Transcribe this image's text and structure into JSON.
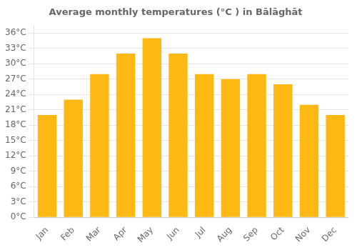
{
  "chart_data": {
    "type": "bar",
    "title": "Average monthly temperatures (°C ) in Bālāghāt",
    "categories": [
      "Jan",
      "Feb",
      "Mar",
      "Apr",
      "May",
      "Jun",
      "Jul",
      "Aug",
      "Sep",
      "Oct",
      "Nov",
      "Dec"
    ],
    "values": [
      20,
      23,
      28,
      32,
      35,
      32,
      28,
      27,
      28,
      26,
      22,
      20
    ],
    "color": "#FDB813",
    "ylim": [
      0,
      37.5
    ],
    "yticks": [
      {
        "value": 0,
        "label": "0°C"
      },
      {
        "value": 3,
        "label": "3°C"
      },
      {
        "value": 6,
        "label": "6°C"
      },
      {
        "value": 9,
        "label": "9°C"
      },
      {
        "value": 12,
        "label": "12°C"
      },
      {
        "value": 15,
        "label": "15°C"
      },
      {
        "value": 18,
        "label": "18°C"
      },
      {
        "value": 21,
        "label": "21°C"
      },
      {
        "value": 24,
        "label": "24°C"
      },
      {
        "value": 27,
        "label": "27°C"
      },
      {
        "value": 30,
        "label": "30°C"
      },
      {
        "value": 33,
        "label": "33°C"
      },
      {
        "value": 36,
        "label": "36°C"
      }
    ],
    "grid": true
  }
}
